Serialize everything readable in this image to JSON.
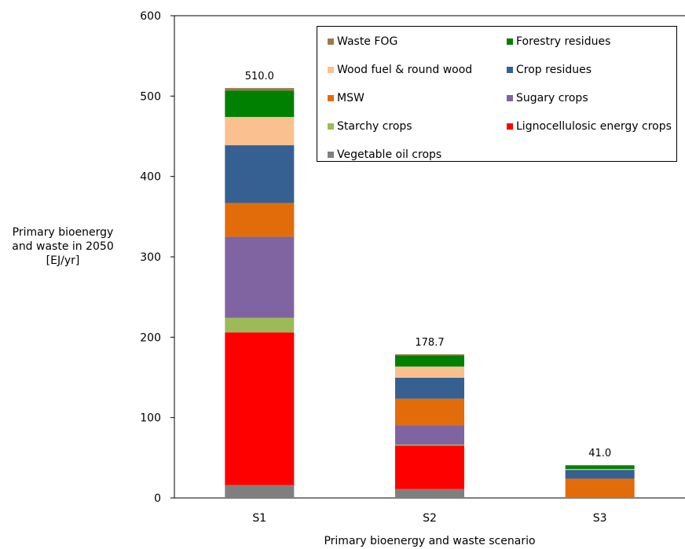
{
  "chart_data": {
    "type": "bar",
    "stacked": true,
    "categories": [
      "S1",
      "S2",
      "S3"
    ],
    "totals": [
      "510.0",
      "178.7",
      "41.0"
    ],
    "xlabel": "Primary bioenergy and waste scenario",
    "ylabel": [
      "Primary bioenergy",
      "and waste in 2050",
      "[EJ/yr]"
    ],
    "ylim": [
      0,
      600
    ],
    "yticks": [
      "0",
      "100",
      "200",
      "300",
      "400",
      "500",
      "600"
    ],
    "grid": false,
    "legend_position": "top-right",
    "series": [
      {
        "name": "Vegetable oil crops",
        "color": "#7f7f7f",
        "values": [
          16,
          11,
          0
        ]
      },
      {
        "name": "Lignocellulosic energy crops",
        "color": "#ff0000",
        "values": [
          190,
          54,
          0
        ]
      },
      {
        "name": "Starchy crops",
        "color": "#9bbb59",
        "values": [
          18,
          1.5,
          0
        ]
      },
      {
        "name": "Sugary crops",
        "color": "#8064a2",
        "values": [
          101,
          24,
          0
        ]
      },
      {
        "name": "MSW",
        "color": "#e36c0a",
        "values": [
          42,
          33,
          24
        ]
      },
      {
        "name": "Crop residues",
        "color": "#376092",
        "values": [
          72,
          26,
          11
        ]
      },
      {
        "name": "Wood fuel & round wood",
        "color": "#fac090",
        "values": [
          35,
          14,
          1
        ]
      },
      {
        "name": "Forestry residues",
        "color": "#008000",
        "values": [
          33,
          14,
          4
        ]
      },
      {
        "name": "Waste FOG",
        "color": "#a07850",
        "values": [
          3,
          1.2,
          1
        ]
      }
    ],
    "legend_order": [
      "Waste FOG",
      "Forestry residues",
      "Wood fuel & round wood",
      "Crop residues",
      "MSW",
      "Sugary crops",
      "Starchy crops",
      "Lignocellulosic energy crops",
      "Vegetable oil crops"
    ]
  }
}
